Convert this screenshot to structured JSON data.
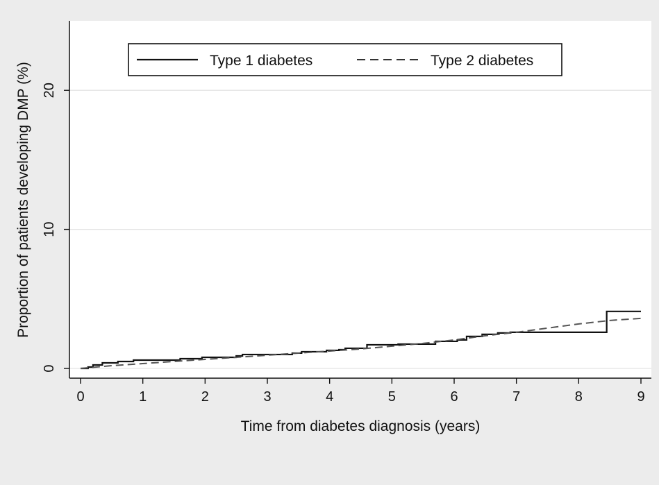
{
  "chart_data": {
    "type": "line",
    "xlabel": "Time from diabetes diagnosis (years)",
    "ylabel": "Proportion of patients developing DMP (%)",
    "xlim": [
      0,
      9
    ],
    "ylim": [
      0,
      25
    ],
    "xticks": [
      0,
      1,
      2,
      3,
      4,
      5,
      6,
      7,
      8,
      9
    ],
    "yticks": [
      0,
      10,
      20
    ],
    "grid": "horizontal",
    "legend_position": "top",
    "series": [
      {
        "name": "Type 1 diabetes",
        "style": "solid-step",
        "color": "#111111",
        "x": [
          0,
          0.12,
          0.2,
          0.35,
          0.6,
          0.85,
          1.6,
          1.95,
          2.5,
          2.6,
          3.4,
          3.55,
          3.95,
          4.15,
          4.25,
          4.6,
          5.1,
          5.7,
          6.05,
          6.2,
          6.45,
          6.7,
          6.9,
          8.45,
          9.0
        ],
        "y": [
          0,
          0.1,
          0.25,
          0.4,
          0.5,
          0.6,
          0.7,
          0.8,
          0.9,
          1.0,
          1.1,
          1.2,
          1.3,
          1.35,
          1.45,
          1.7,
          1.75,
          1.95,
          2.05,
          2.3,
          2.45,
          2.55,
          2.6,
          4.1,
          4.1
        ]
      },
      {
        "name": "Type 2 diabetes",
        "style": "dashed",
        "color": "#555555",
        "x": [
          0,
          0.5,
          1.0,
          1.5,
          2.0,
          2.5,
          3.0,
          3.5,
          4.0,
          4.5,
          5.0,
          5.5,
          6.0,
          6.5,
          7.0,
          7.5,
          8.0,
          8.5,
          9.0
        ],
        "y": [
          0,
          0.2,
          0.35,
          0.5,
          0.65,
          0.8,
          0.95,
          1.1,
          1.25,
          1.4,
          1.6,
          1.8,
          2.05,
          2.35,
          2.6,
          2.9,
          3.2,
          3.45,
          3.6
        ]
      }
    ]
  }
}
